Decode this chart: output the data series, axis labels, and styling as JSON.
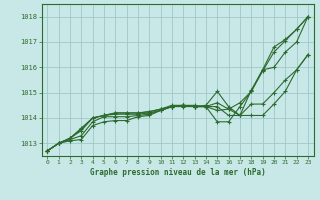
{
  "bg_color": "#c8e8e8",
  "grid_color": "#a0c8c8",
  "line_color": "#2d6a2d",
  "marker_color": "#2d6a2d",
  "xlabel": "Graphe pression niveau de la mer (hPa)",
  "xlim": [
    -0.5,
    23.5
  ],
  "ylim": [
    1012.5,
    1018.5
  ],
  "yticks": [
    1013,
    1014,
    1015,
    1016,
    1017,
    1018
  ],
  "xticks": [
    0,
    1,
    2,
    3,
    4,
    5,
    6,
    7,
    8,
    9,
    10,
    11,
    12,
    13,
    14,
    15,
    16,
    17,
    18,
    19,
    20,
    21,
    22,
    23
  ],
  "lines": [
    {
      "y": [
        1012.7,
        1013.0,
        1013.1,
        1013.15,
        1013.7,
        1013.85,
        1013.9,
        1013.9,
        1014.05,
        1014.1,
        1014.3,
        1014.45,
        1014.45,
        1014.45,
        1014.45,
        1013.85,
        1013.85,
        1014.45,
        1015.05,
        1015.85,
        1016.6,
        1017.05,
        1017.5,
        1018.0
      ]
    },
    {
      "y": [
        1012.7,
        1013.0,
        1013.15,
        1013.3,
        1013.85,
        1014.05,
        1014.05,
        1014.05,
        1014.1,
        1014.15,
        1014.3,
        1014.45,
        1014.5,
        1014.45,
        1014.5,
        1015.05,
        1014.45,
        1014.1,
        1015.1,
        1015.9,
        1016.0,
        1016.6,
        1017.0,
        1018.0
      ]
    },
    {
      "y": [
        1012.7,
        1013.0,
        1013.2,
        1013.5,
        1014.0,
        1014.1,
        1014.15,
        1014.15,
        1014.15,
        1014.2,
        1014.3,
        1014.45,
        1014.5,
        1014.45,
        1014.45,
        1014.45,
        1014.1,
        1014.1,
        1014.55,
        1014.55,
        1015.0,
        1015.5,
        1015.9,
        1016.5
      ]
    },
    {
      "y": [
        1012.7,
        1013.0,
        1013.2,
        1013.55,
        1014.0,
        1014.1,
        1014.2,
        1014.2,
        1014.2,
        1014.25,
        1014.35,
        1014.45,
        1014.5,
        1014.45,
        1014.45,
        1014.6,
        1014.35,
        1014.1,
        1014.1,
        1014.1,
        1014.55,
        1015.05,
        1015.9,
        1016.5
      ]
    },
    {
      "y": [
        1012.7,
        1013.0,
        1013.2,
        1013.6,
        1014.0,
        1014.1,
        1014.2,
        1014.2,
        1014.2,
        1014.25,
        1014.35,
        1014.5,
        1014.5,
        1014.5,
        1014.45,
        1014.3,
        1014.35,
        1014.6,
        1015.05,
        1015.9,
        1016.8,
        1017.1,
        1017.5,
        1018.0
      ]
    }
  ]
}
